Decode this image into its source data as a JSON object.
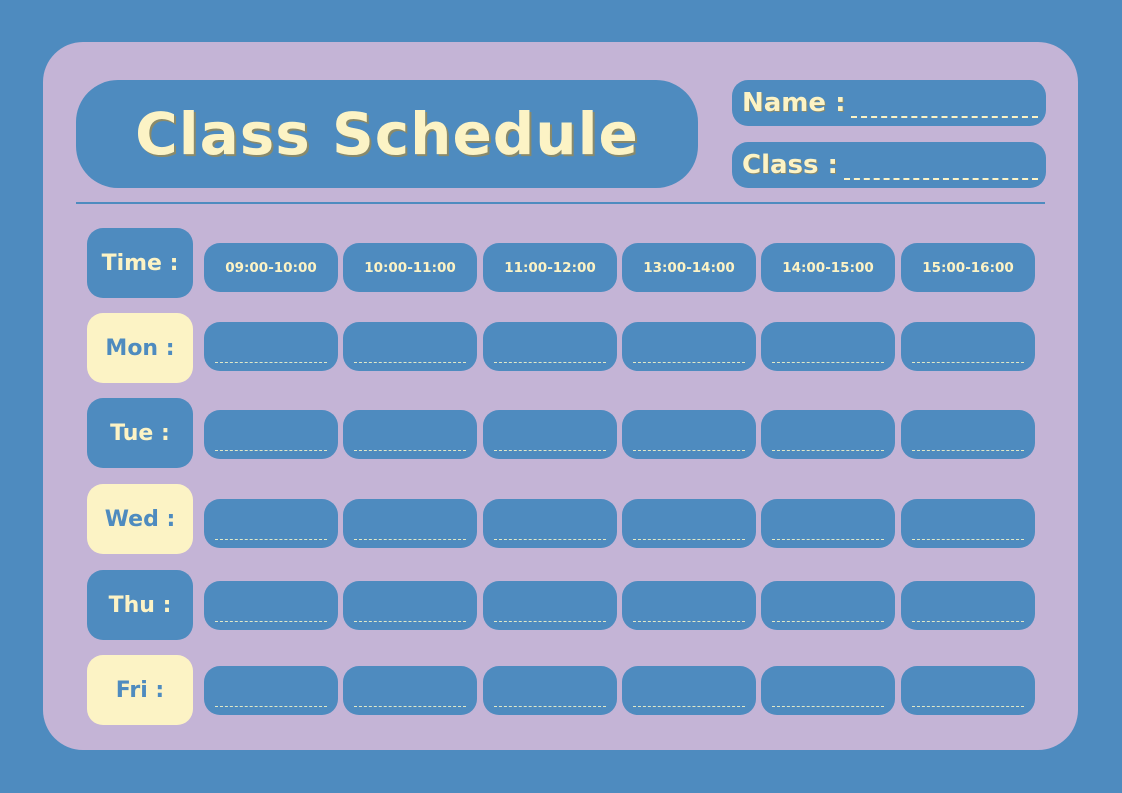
{
  "title": "Class Schedule",
  "fields": {
    "name_label": "Name :",
    "class_label": "Class :"
  },
  "header": {
    "time_label": "Time :",
    "slots": [
      "09:00-10:00",
      "10:00-11:00",
      "11:00-12:00",
      "13:00-14:00",
      "14:00-15:00",
      "15:00-16:00"
    ]
  },
  "days": [
    {
      "label": "Mon :",
      "style": "cream"
    },
    {
      "label": "Tue :",
      "style": "blue"
    },
    {
      "label": "Wed :",
      "style": "cream"
    },
    {
      "label": "Thu :",
      "style": "blue"
    },
    {
      "label": "Fri :",
      "style": "cream"
    }
  ],
  "colors": {
    "background": "#4e8bbf",
    "panel": "#c4b4d6",
    "accent": "#fcf3c5"
  }
}
